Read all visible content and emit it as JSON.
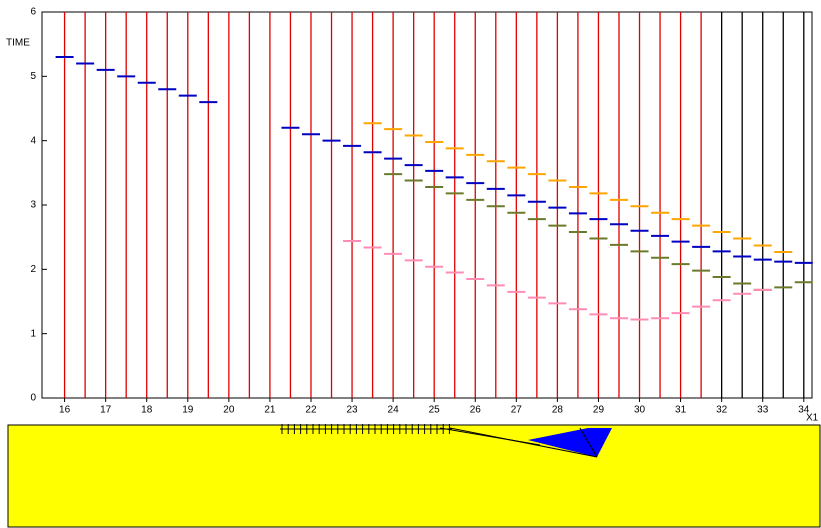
{
  "chart_data": {
    "type": "picks",
    "y_label": "TIME",
    "x_label": "X1",
    "xlim": [
      15.45,
      34.2
    ],
    "ylim": [
      0,
      6
    ],
    "xticks": [
      16,
      17,
      18,
      19,
      20,
      21,
      22,
      23,
      24,
      25,
      26,
      27,
      28,
      29,
      30,
      31,
      32,
      33,
      34
    ],
    "yticks": [
      0,
      1,
      2,
      3,
      4,
      5,
      6
    ],
    "trace_groups": [
      {
        "color": "#e00000",
        "x": [
          16,
          16.5,
          17,
          17.5,
          18,
          18.5,
          19,
          19.5,
          20,
          20.5,
          21,
          21.5,
          22,
          22.5,
          23,
          23.5,
          24,
          24.5,
          25,
          25.5,
          26,
          26.5,
          27,
          27.5,
          28,
          28.5,
          29,
          29.5,
          30,
          30.5,
          31,
          31.5
        ]
      },
      {
        "color": "#000000",
        "x": [
          32,
          32.5,
          33,
          33.5,
          34
        ]
      }
    ],
    "series": [
      {
        "color": "#0000c0",
        "x": [
          16,
          16.5,
          17,
          17.5,
          18,
          18.5,
          19,
          19.5,
          21.5,
          22,
          22.5,
          23,
          23.5,
          24,
          24.5,
          25,
          25.5,
          26,
          26.5,
          27,
          27.5,
          28,
          28.5,
          29,
          29.5,
          30,
          30.5,
          31,
          31.5,
          32,
          32.5,
          33,
          33.5,
          34
        ],
        "values": [
          5.3,
          5.2,
          5.1,
          5.0,
          4.9,
          4.8,
          4.7,
          4.6,
          4.2,
          4.1,
          4.0,
          3.92,
          3.82,
          3.72,
          3.62,
          3.53,
          3.43,
          3.34,
          3.25,
          3.15,
          3.05,
          2.96,
          2.87,
          2.78,
          2.7,
          2.6,
          2.52,
          2.43,
          2.35,
          2.28,
          2.2,
          2.15,
          2.12,
          2.1
        ]
      },
      {
        "color": "#ffa500",
        "x": [
          23.5,
          24,
          24.5,
          25,
          25.5,
          26,
          26.5,
          27,
          27.5,
          28,
          28.5,
          29,
          29.5,
          30,
          30.5,
          31,
          31.5,
          32,
          32.5,
          33,
          33.5
        ],
        "values": [
          4.27,
          4.18,
          4.08,
          3.98,
          3.88,
          3.78,
          3.68,
          3.58,
          3.48,
          3.38,
          3.28,
          3.18,
          3.08,
          2.98,
          2.88,
          2.78,
          2.68,
          2.58,
          2.48,
          2.37,
          2.27
        ]
      },
      {
        "color": "#6b7a2a",
        "x": [
          24,
          24.5,
          25,
          25.5,
          26,
          26.5,
          27,
          27.5,
          28,
          28.5,
          29,
          29.5,
          30,
          30.5,
          31,
          31.5,
          32,
          32.5,
          33,
          33.5,
          34
        ],
        "values": [
          3.48,
          3.38,
          3.28,
          3.18,
          3.08,
          2.98,
          2.88,
          2.78,
          2.68,
          2.58,
          2.48,
          2.38,
          2.28,
          2.18,
          2.08,
          1.98,
          1.88,
          1.78,
          1.68,
          1.72,
          1.8
        ]
      },
      {
        "color": "#ff8cb4",
        "x": [
          23,
          23.5,
          24,
          24.5,
          25,
          25.5,
          26,
          26.5,
          27,
          27.5,
          28,
          28.5,
          29,
          29.5,
          30,
          30.5,
          31,
          31.5,
          32,
          32.5,
          33
        ],
        "values": [
          2.44,
          2.34,
          2.24,
          2.14,
          2.04,
          1.95,
          1.85,
          1.75,
          1.65,
          1.56,
          1.47,
          1.38,
          1.3,
          1.24,
          1.22,
          1.24,
          1.32,
          1.42,
          1.52,
          1.62,
          1.68
        ]
      }
    ]
  }
}
